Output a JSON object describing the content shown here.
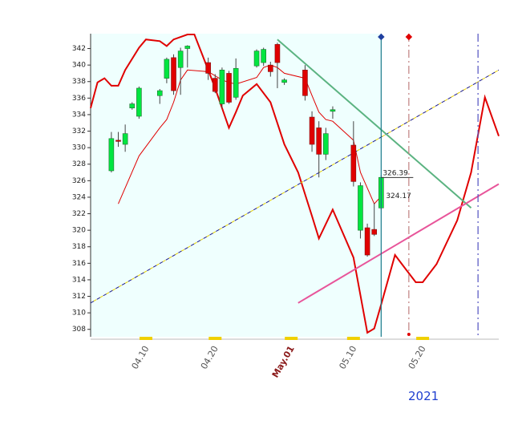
{
  "chart_data": {
    "type": "candlestick",
    "xlim": [
      "04.02",
      "05.31"
    ],
    "ylim": [
      307.1,
      343.8
    ],
    "yticks": [
      308,
      310,
      312,
      314,
      316,
      318,
      320,
      322,
      324,
      326,
      328,
      330,
      332,
      334,
      336,
      338,
      340,
      342
    ],
    "xticks": [
      "04.10",
      "04.20",
      {
        "value": "05.01",
        "label": "May.01"
      },
      "05.10",
      "05.20"
    ],
    "year_label": "2021",
    "up_color": "#00e640",
    "down_color": "#e00000",
    "background_color": "#effffe",
    "candles": {
      "x": [
        "04.05",
        "04.06",
        "04.07",
        "04.08",
        "04.09",
        "04.12",
        "04.13",
        "04.14",
        "04.15",
        "04.16",
        "04.19",
        "04.20",
        "04.21",
        "04.22",
        "04.23",
        "04.26",
        "04.27",
        "04.28",
        "04.29",
        "04.30",
        "05.03",
        "05.04",
        "05.05",
        "05.06",
        "05.07",
        "05.10",
        "05.11",
        "05.12",
        "05.13",
        "05.14"
      ],
      "open": [
        327.2,
        330.9,
        330.4,
        334.8,
        333.8,
        336.3,
        338.4,
        340.9,
        339.7,
        342.0,
        340.3,
        338.4,
        335.3,
        339.0,
        336.1,
        339.9,
        340.3,
        340.0,
        342.5,
        337.9,
        339.4,
        333.7,
        332.4,
        329.2,
        334.4,
        330.3,
        320.0,
        320.3,
        320.1,
        322.7
      ],
      "high": [
        331.9,
        331.9,
        332.8,
        335.5,
        337.4,
        337.1,
        340.9,
        341.3,
        342.1,
        342.4,
        340.9,
        338.9,
        339.7,
        339.3,
        340.8,
        341.9,
        342.1,
        340.4,
        342.7,
        338.4,
        340.0,
        334.4,
        333.2,
        332.4,
        335.0,
        333.2,
        325.8,
        320.8,
        323.3,
        326.7
      ],
      "low": [
        327.0,
        330.1,
        329.5,
        334.6,
        333.5,
        335.3,
        337.8,
        336.4,
        336.4,
        339.7,
        338.2,
        336.6,
        334.8,
        335.3,
        335.8,
        339.7,
        339.9,
        338.6,
        337.2,
        337.6,
        335.7,
        329.5,
        326.4,
        328.5,
        333.5,
        325.3,
        319.0,
        316.8,
        319.3,
        322.5
      ],
      "close": [
        331.1,
        330.8,
        331.7,
        335.3,
        337.2,
        336.9,
        340.7,
        336.9,
        341.7,
        342.3,
        339.0,
        336.8,
        339.4,
        335.5,
        339.6,
        341.7,
        341.9,
        339.2,
        340.3,
        338.2,
        336.3,
        330.4,
        329.2,
        331.7,
        334.6,
        325.9,
        325.4,
        317.0,
        319.5,
        326.4
      ]
    },
    "lines": [
      {
        "color": "#e00000",
        "width": 2,
        "dash": false,
        "x": [
          "04.02",
          "04.03",
          "04.04",
          "04.05",
          "04.06",
          "04.07",
          "04.09",
          "04.10",
          "04.12",
          "04.13",
          "04.14",
          "04.16",
          "04.17",
          "04.19",
          "04.20",
          "04.22",
          "04.23",
          "04.24",
          "04.26",
          "04.28",
          "04.30",
          "05.02",
          "05.04",
          "05.05",
          "05.07",
          "05.10",
          "05.12",
          "05.13",
          "05.14",
          "05.16",
          "05.17",
          "05.19",
          "05.20",
          "05.22",
          "05.25",
          "05.27",
          "05.29",
          "05.31"
        ],
        "values": [
          334.8,
          337.9,
          338.4,
          337.5,
          337.5,
          339.4,
          342.1,
          343.1,
          342.9,
          342.3,
          343.1,
          343.7,
          343.7,
          339.4,
          337.2,
          332.4,
          334.3,
          336.3,
          337.7,
          335.5,
          330.4,
          327.0,
          321.7,
          319.0,
          322.5,
          316.7,
          307.6,
          308.1,
          311.0,
          317.0,
          315.9,
          313.7,
          313.7,
          315.9,
          321.2,
          327.0,
          336.1,
          331.4
        ]
      },
      {
        "color": "#e00000",
        "width": 1,
        "dash": false,
        "x": [
          "04.06",
          "04.09",
          "04.12",
          "04.13",
          "04.14",
          "04.15",
          "04.16",
          "04.19",
          "04.20",
          "04.21",
          "04.22",
          "04.23",
          "04.26",
          "04.27",
          "04.28",
          "04.29",
          "04.30",
          "05.03",
          "05.04",
          "05.05",
          "05.06",
          "05.07",
          "05.10",
          "05.11",
          "05.12",
          "05.13",
          "05.14"
        ],
        "values": [
          323.2,
          329.0,
          332.4,
          333.4,
          335.5,
          338.2,
          339.4,
          339.2,
          338.7,
          338.2,
          337.9,
          337.7,
          338.5,
          339.7,
          340.0,
          339.7,
          339.0,
          338.4,
          336.3,
          334.3,
          333.4,
          333.2,
          330.9,
          327.0,
          325.1,
          323.2,
          324.1
        ]
      },
      {
        "color": "#1a1a8c",
        "width": 1,
        "dash": true,
        "x": [
          "04.02",
          "05.31"
        ],
        "values": [
          311.2,
          339.4
        ]
      },
      {
        "color": "#5bb381",
        "width": 2,
        "dash": false,
        "x": [
          "04.29",
          "05.27"
        ],
        "values": [
          343.1,
          322.7
        ]
      },
      {
        "color": "#e8559a",
        "width": 2,
        "dash": false,
        "x": [
          "05.02",
          "05.31"
        ],
        "values": [
          311.2,
          325.6
        ]
      }
    ],
    "vertical_lines": [
      {
        "x": "05.14",
        "color": "#1a7a8a",
        "dash": false,
        "marker": "#2040a0"
      },
      {
        "x": "05.18",
        "color": "#c08080",
        "dash": true,
        "marker": "#e00000"
      },
      {
        "x": "05.28",
        "color": "#5050c0",
        "dash": true,
        "marker": null
      }
    ],
    "annotations": [
      {
        "label": "326.39",
        "value": 326.39
      },
      {
        "label": "324.17",
        "value": 324.17
      }
    ]
  }
}
